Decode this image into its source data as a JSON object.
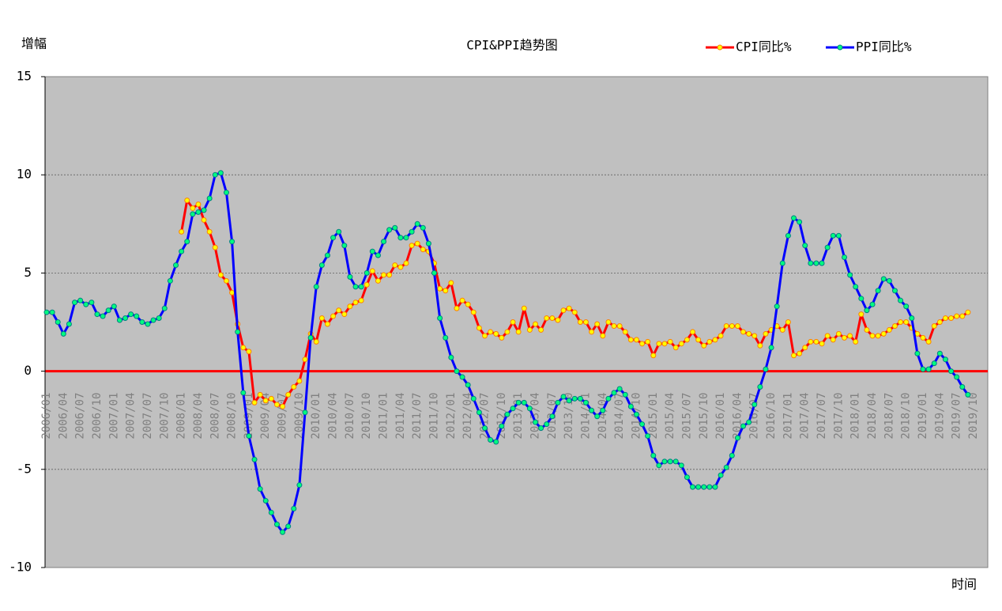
{
  "chart_data": {
    "type": "line",
    "title": "CPI&PPI趋势图",
    "y_label": "增幅",
    "x_label": "时间",
    "categories": [
      "2006/01",
      null,
      null,
      "2006/04",
      null,
      null,
      "2006/07",
      null,
      null,
      "2006/10",
      null,
      null,
      "2007/01",
      null,
      null,
      "2007/04",
      null,
      null,
      "2007/07",
      null,
      null,
      "2007/10",
      null,
      null,
      "2008/01",
      null,
      null,
      "2008/04",
      null,
      null,
      "2008/07",
      null,
      null,
      "2008/10",
      null,
      null,
      "2009/01",
      null,
      null,
      "2009/04",
      null,
      null,
      "2009/07",
      null,
      null,
      "2009/10",
      null,
      null,
      "2010/01",
      null,
      null,
      "2010/04",
      null,
      null,
      "2010/07",
      null,
      null,
      "2010/10",
      null,
      null,
      "2011/01",
      null,
      null,
      "2011/04",
      null,
      null,
      "2011/07",
      null,
      null,
      "2011/10",
      null,
      null,
      "2012/01",
      null,
      null,
      "2012/04",
      null,
      null,
      "2012/07",
      null,
      null,
      "2012/10",
      null,
      null,
      "2013/01",
      null,
      null,
      "2013/04",
      null,
      null,
      "2013/07",
      null,
      null,
      "2013/10",
      null,
      null,
      "2014/01",
      null,
      null,
      "2014/04",
      null,
      null,
      "2014/07",
      null,
      null,
      "2014/10",
      null,
      null,
      "2015/01",
      null,
      null,
      "2015/04",
      null,
      null,
      "2015/07",
      null,
      null,
      "2015/10",
      null,
      null,
      "2016/01",
      null,
      null,
      "2016/04",
      null,
      null,
      "2016/07",
      null,
      null,
      "2016/10",
      null,
      null,
      "2017/01",
      null,
      null,
      "2017/04",
      null,
      null,
      "2017/07",
      null,
      null,
      "2017/10",
      null,
      null,
      "2018/01",
      null,
      null,
      "2018/04",
      null,
      null,
      "2018/07",
      null,
      null,
      "2018/10",
      null,
      null,
      "2019/01",
      null,
      null,
      "2019/04",
      null,
      null,
      "2019/07",
      null,
      null,
      "2019/10"
    ],
    "series": [
      {
        "name": "CPI同比%",
        "color": "#ff0000",
        "marker_fill": "#ffff00",
        "marker_stroke": "#ff8000",
        "values": [
          null,
          null,
          null,
          null,
          null,
          null,
          null,
          null,
          null,
          null,
          null,
          null,
          null,
          null,
          null,
          null,
          null,
          null,
          null,
          null,
          null,
          null,
          null,
          null,
          7.1,
          8.7,
          8.3,
          8.5,
          7.7,
          7.1,
          6.3,
          4.9,
          4.6,
          4.0,
          2.4,
          1.2,
          1.0,
          -1.6,
          -1.2,
          -1.5,
          -1.4,
          -1.7,
          -1.8,
          -1.2,
          -0.8,
          -0.5,
          0.6,
          1.9,
          1.5,
          2.7,
          2.4,
          2.8,
          3.1,
          2.9,
          3.3,
          3.5,
          3.6,
          4.4,
          5.1,
          4.6,
          4.9,
          4.9,
          5.4,
          5.3,
          5.5,
          6.4,
          6.5,
          6.2,
          6.1,
          5.5,
          4.2,
          4.1,
          4.5,
          3.2,
          3.6,
          3.4,
          3.0,
          2.2,
          1.8,
          2.0,
          1.9,
          1.7,
          2.0,
          2.5,
          2.0,
          3.2,
          2.1,
          2.4,
          2.1,
          2.7,
          2.7,
          2.6,
          3.1,
          3.2,
          3.0,
          2.5,
          2.5,
          2.0,
          2.4,
          1.8,
          2.5,
          2.3,
          2.3,
          2.0,
          1.6,
          1.6,
          1.4,
          1.5,
          0.8,
          1.4,
          1.4,
          1.5,
          1.2,
          1.4,
          1.6,
          2.0,
          1.6,
          1.3,
          1.5,
          1.6,
          1.8,
          2.3,
          2.3,
          2.3,
          2.0,
          1.9,
          1.8,
          1.3,
          1.9,
          2.1,
          2.3,
          2.1,
          2.5,
          0.8,
          0.9,
          1.2,
          1.5,
          1.5,
          1.4,
          1.8,
          1.6,
          1.9,
          1.7,
          1.8,
          1.5,
          2.9,
          2.1,
          1.8,
          1.8,
          1.9,
          2.1,
          2.3,
          2.5,
          2.5,
          2.2,
          1.9,
          1.7,
          1.5,
          2.3,
          2.5,
          2.7,
          2.7,
          2.8,
          2.8,
          3.0,
          null
        ]
      },
      {
        "name": "PPI同比%",
        "color": "#0000ff",
        "marker_fill": "#00ff80",
        "marker_stroke": "#008080",
        "values": [
          3.0,
          3.0,
          2.5,
          1.9,
          2.4,
          3.5,
          3.6,
          3.4,
          3.5,
          2.9,
          2.8,
          3.1,
          3.3,
          2.6,
          2.7,
          2.9,
          2.8,
          2.5,
          2.4,
          2.6,
          2.7,
          3.2,
          4.6,
          5.4,
          6.1,
          6.6,
          8.0,
          8.1,
          8.2,
          8.8,
          10.0,
          10.1,
          9.1,
          6.6,
          2.0,
          -1.1,
          -3.3,
          -4.5,
          -6.0,
          -6.6,
          -7.2,
          -7.8,
          -8.2,
          -7.9,
          -7.0,
          -5.8,
          -2.1,
          1.7,
          4.3,
          5.4,
          5.9,
          6.8,
          7.1,
          6.4,
          4.8,
          4.3,
          4.3,
          5.0,
          6.1,
          5.9,
          6.6,
          7.2,
          7.3,
          6.8,
          6.8,
          7.1,
          7.5,
          7.3,
          6.5,
          5.0,
          2.7,
          1.7,
          0.7,
          0.0,
          -0.3,
          -0.7,
          -1.4,
          -2.1,
          -2.9,
          -3.5,
          -3.6,
          -2.8,
          -2.2,
          -1.9,
          -1.6,
          -1.6,
          -1.9,
          -2.6,
          -2.9,
          -2.7,
          -2.3,
          -1.6,
          -1.3,
          -1.5,
          -1.4,
          -1.4,
          -1.6,
          -2.0,
          -2.3,
          -2.0,
          -1.4,
          -1.1,
          -0.9,
          -1.2,
          -1.8,
          -2.2,
          -2.7,
          -3.3,
          -4.3,
          -4.8,
          -4.6,
          -4.6,
          -4.6,
          -4.8,
          -5.4,
          -5.9,
          -5.9,
          -5.9,
          -5.9,
          -5.9,
          -5.3,
          -4.9,
          -4.3,
          -3.4,
          -2.8,
          -2.6,
          -1.7,
          -0.8,
          0.1,
          1.2,
          3.3,
          5.5,
          6.9,
          7.8,
          7.6,
          6.4,
          5.5,
          5.5,
          5.5,
          6.3,
          6.9,
          6.9,
          5.8,
          4.9,
          4.3,
          3.7,
          3.1,
          3.4,
          4.1,
          4.7,
          4.6,
          4.1,
          3.6,
          3.3,
          2.7,
          0.9,
          0.1,
          0.1,
          0.4,
          0.9,
          0.6,
          0.0,
          -0.3,
          -0.8,
          -1.2,
          null
        ]
      }
    ],
    "ylim": [
      -10,
      15
    ],
    "yticks": [
      -10,
      -5,
      0,
      5,
      10,
      15
    ],
    "grid": true,
    "zero_line_color": "#ff0000",
    "plot_background": "#c0c0c0",
    "legend": "top-right"
  }
}
